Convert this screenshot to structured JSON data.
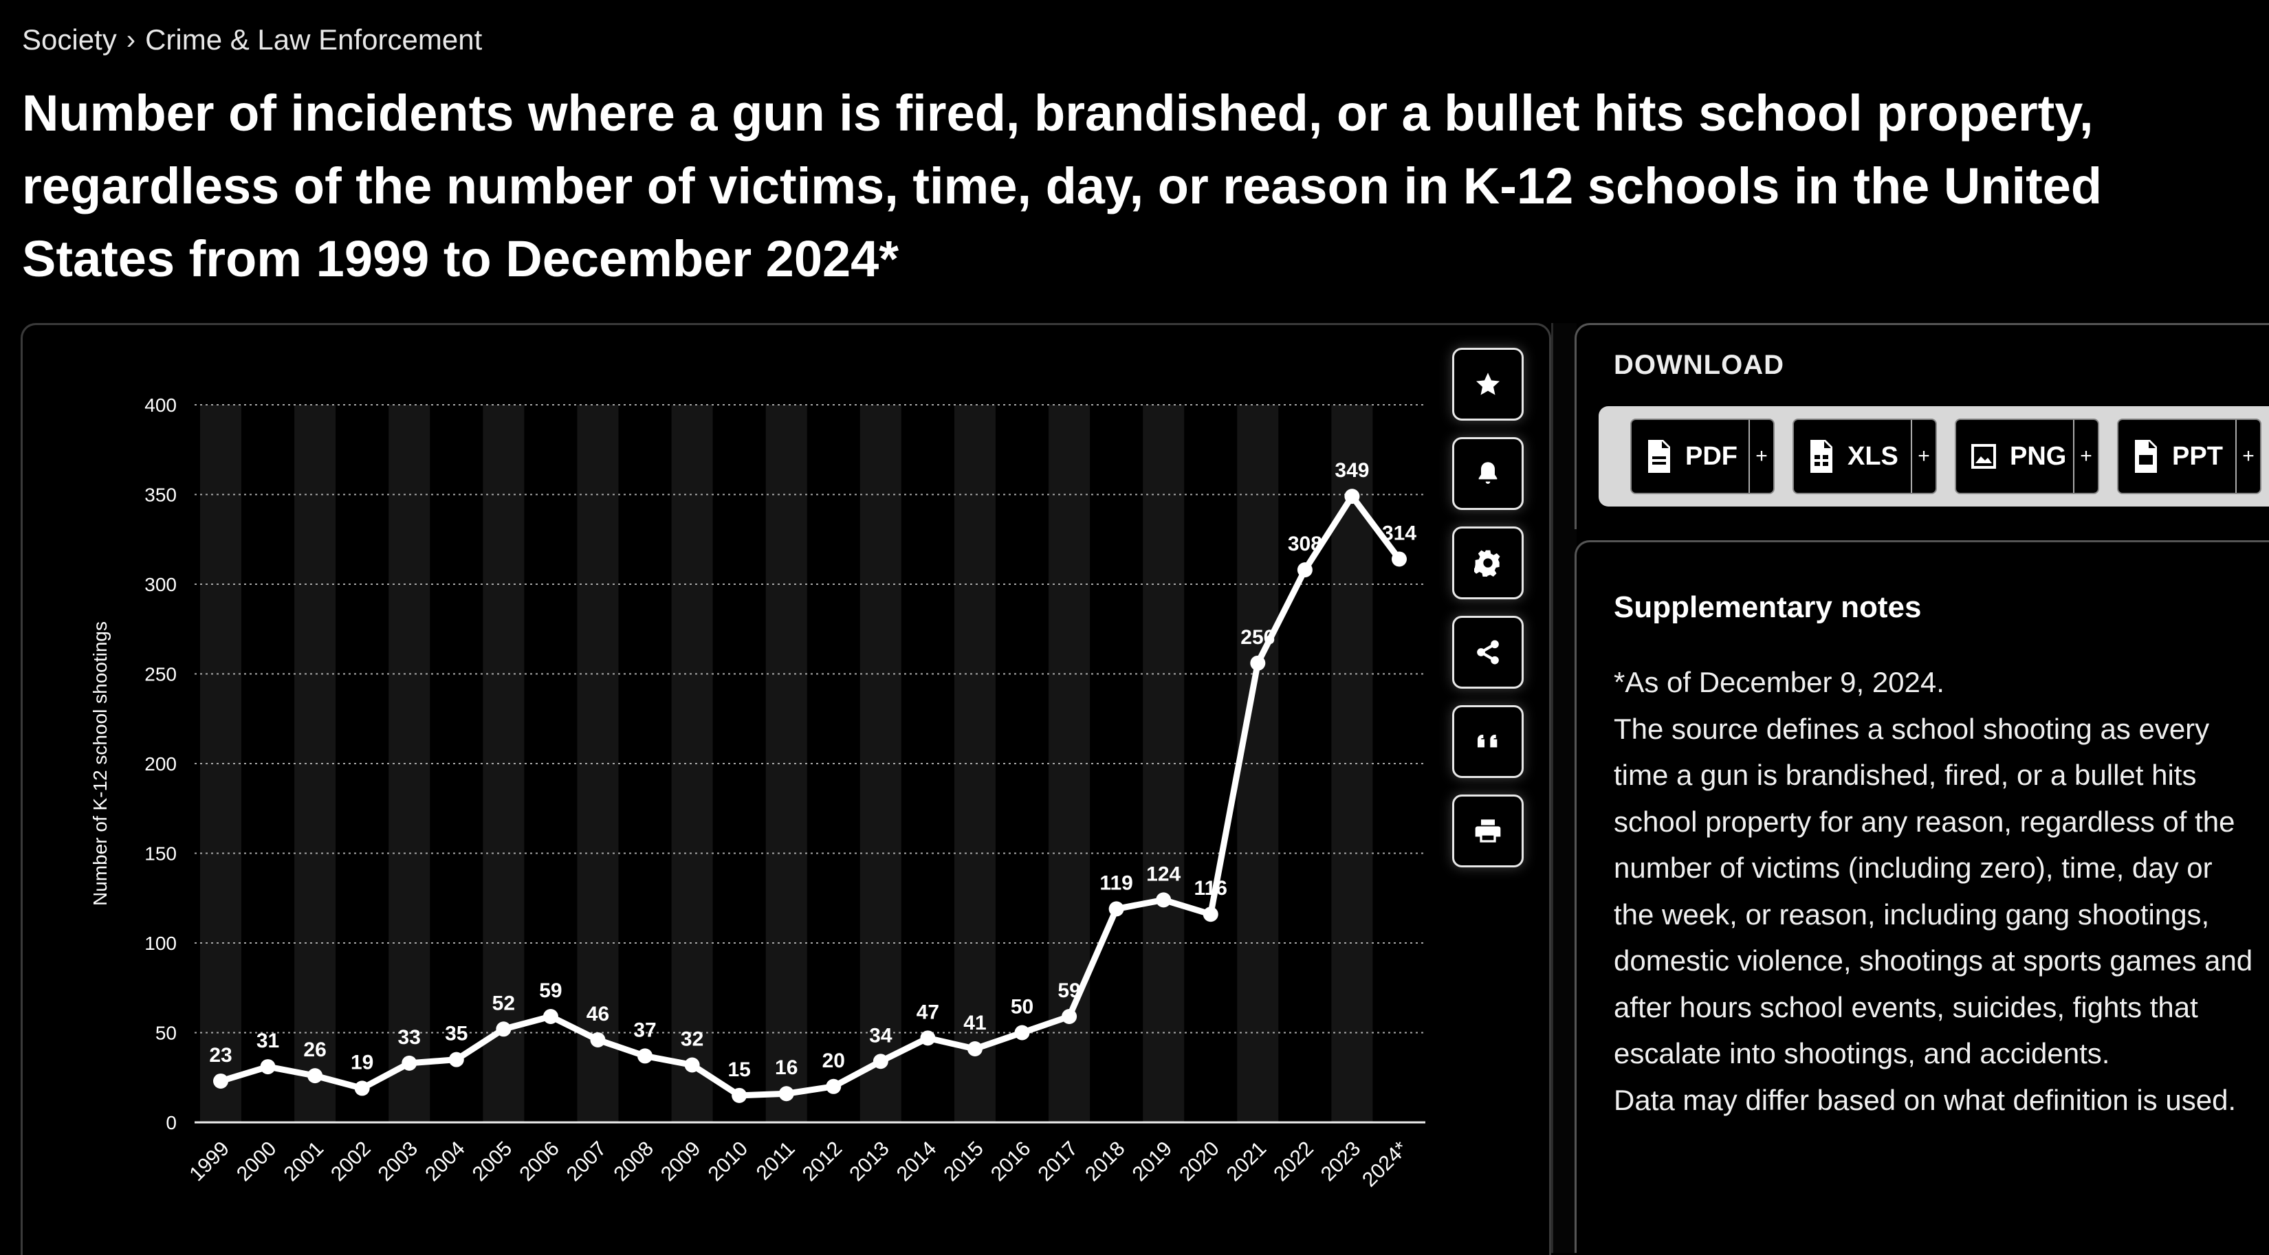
{
  "breadcrumb": {
    "section": "Society",
    "separator": "›",
    "category": "Crime & Law Enforcement"
  },
  "title": "Number of incidents where a gun is fired, brandished, or a bullet hits school property, regardless of the number of victims, time, day, or reason in K-12 schools in the United States from 1999 to December 2024*",
  "toolbar": {
    "icons": [
      "star-icon",
      "bell-icon",
      "gear-icon",
      "share-icon",
      "quote-icon",
      "print-icon"
    ]
  },
  "download": {
    "title": "DOWNLOAD",
    "buttons": [
      {
        "label": "PDF",
        "plus": "+"
      },
      {
        "label": "XLS",
        "plus": "+"
      },
      {
        "label": "PNG",
        "plus": "+"
      },
      {
        "label": "PPT",
        "plus": "+"
      }
    ]
  },
  "notes": {
    "title": "Supplementary notes",
    "paragraphs": [
      "*As of December 9, 2024.",
      "The source defines a school shooting as every time a gun is brandished, fired, or a bullet hits school property for any reason, regardless of the number of victims (including zero), time, day or the week, or reason, including gang shootings, domestic violence, shootings at sports games and after hours school events, suicides, fights that escalate into shootings, and accidents.",
      "Data may differ based on what definition is used."
    ]
  },
  "colors": {
    "background": "#000000",
    "line": "#ffffff",
    "grid": "#bbbbbb"
  },
  "chart_data": {
    "type": "line",
    "categories": [
      "1999",
      "2000",
      "2001",
      "2002",
      "2003",
      "2004",
      "2005",
      "2006",
      "2007",
      "2008",
      "2009",
      "2010",
      "2011",
      "2012",
      "2013",
      "2014",
      "2015",
      "2016",
      "2017",
      "2018",
      "2019",
      "2020",
      "2021",
      "2022",
      "2023",
      "2024*"
    ],
    "values": [
      23,
      31,
      26,
      19,
      33,
      35,
      52,
      59,
      46,
      37,
      32,
      15,
      16,
      20,
      34,
      47,
      41,
      50,
      59,
      119,
      124,
      116,
      256,
      308,
      349,
      314
    ],
    "ylabel": "Number of K-12 school shootings",
    "xlabel": "",
    "ylim": [
      0,
      400
    ],
    "yticks": [
      0,
      50,
      100,
      150,
      200,
      250,
      300,
      350,
      400
    ],
    "grid": true,
    "data_labels": true
  }
}
